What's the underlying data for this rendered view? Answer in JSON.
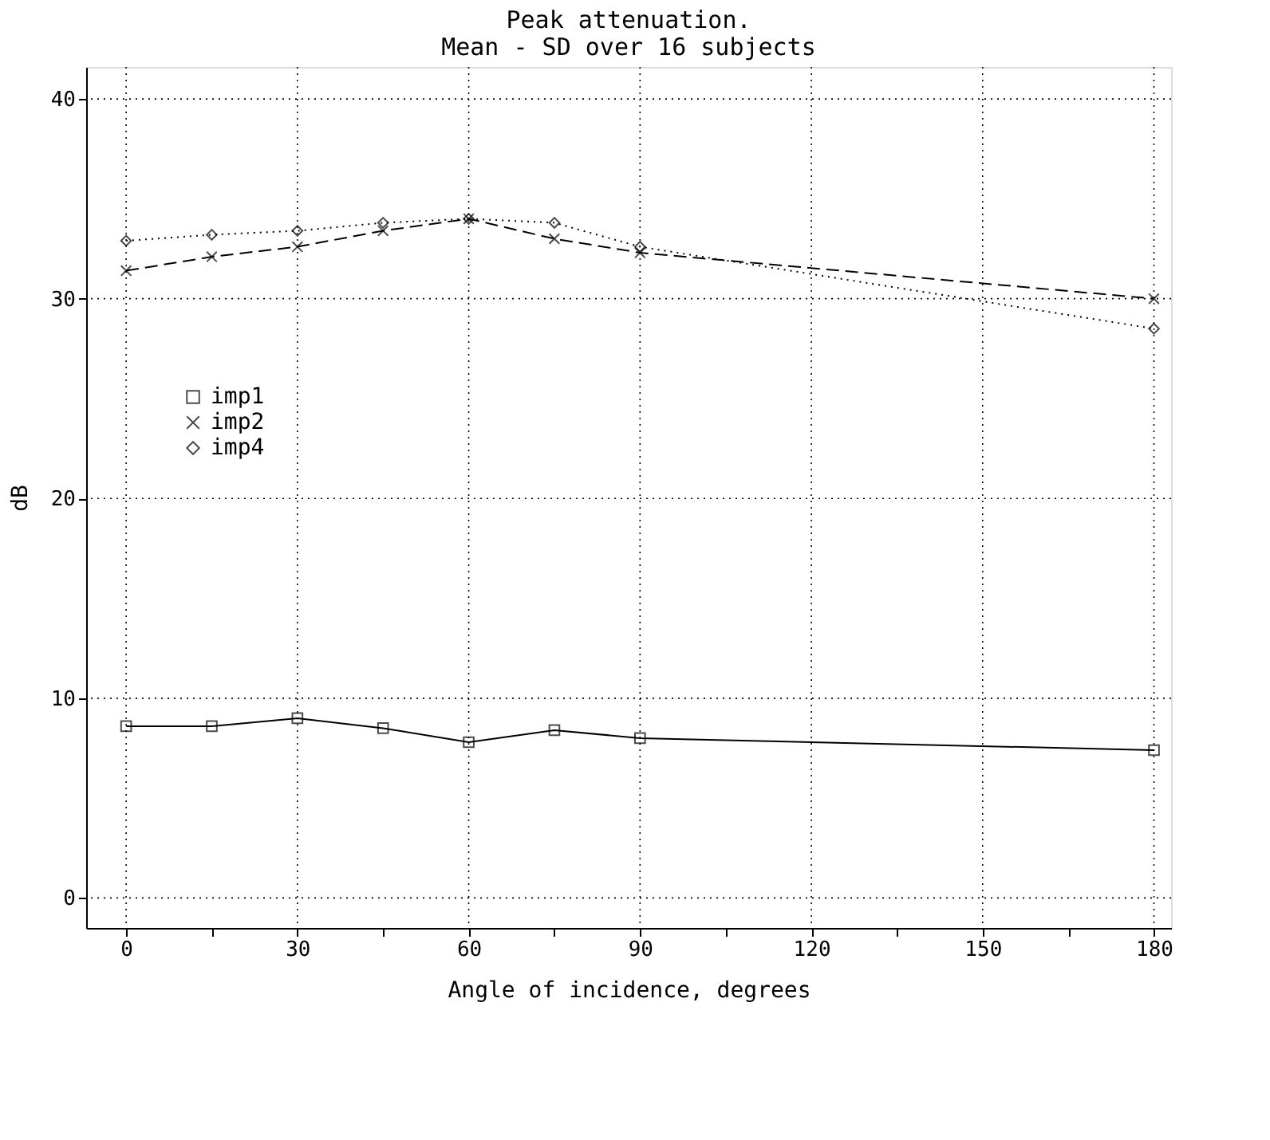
{
  "chart_data": {
    "type": "line",
    "title": "Peak attenuation.\nMean - SD over 16 subjects",
    "xlabel": "Angle of incidence, degrees",
    "ylabel": "dB",
    "x": [
      0,
      15,
      30,
      45,
      60,
      75,
      90,
      180
    ],
    "series": [
      {
        "name": "imp1",
        "color": "#000000",
        "marker": "square",
        "line_style": "solid",
        "values": [
          8.6,
          8.6,
          9.0,
          8.5,
          7.8,
          8.4,
          8.0,
          7.4
        ]
      },
      {
        "name": "imp2",
        "color": "#000000",
        "marker": "cross",
        "line_style": "dashed",
        "values": [
          31.4,
          32.1,
          32.6,
          33.4,
          34.0,
          33.0,
          32.3,
          30.0
        ]
      },
      {
        "name": "imp4",
        "color": "#000000",
        "marker": "diamond",
        "line_style": "dotted",
        "values": [
          32.9,
          33.2,
          33.4,
          33.8,
          34.0,
          33.8,
          32.6,
          28.5
        ]
      }
    ],
    "xlim": [
      -7,
      183
    ],
    "ylim": [
      -1.5,
      41.6
    ],
    "xticks": [
      0,
      {
        "value": 15,
        "label": null
      },
      30,
      {
        "value": 45,
        "label": null
      },
      60,
      {
        "value": 75,
        "label": null
      },
      90,
      {
        "value": 105,
        "label": null
      },
      120,
      {
        "value": 135,
        "label": null
      },
      150,
      {
        "value": 165,
        "label": null
      },
      180
    ],
    "yticks": [
      0,
      10,
      20,
      30,
      40
    ],
    "grid": true,
    "legend": "left"
  }
}
